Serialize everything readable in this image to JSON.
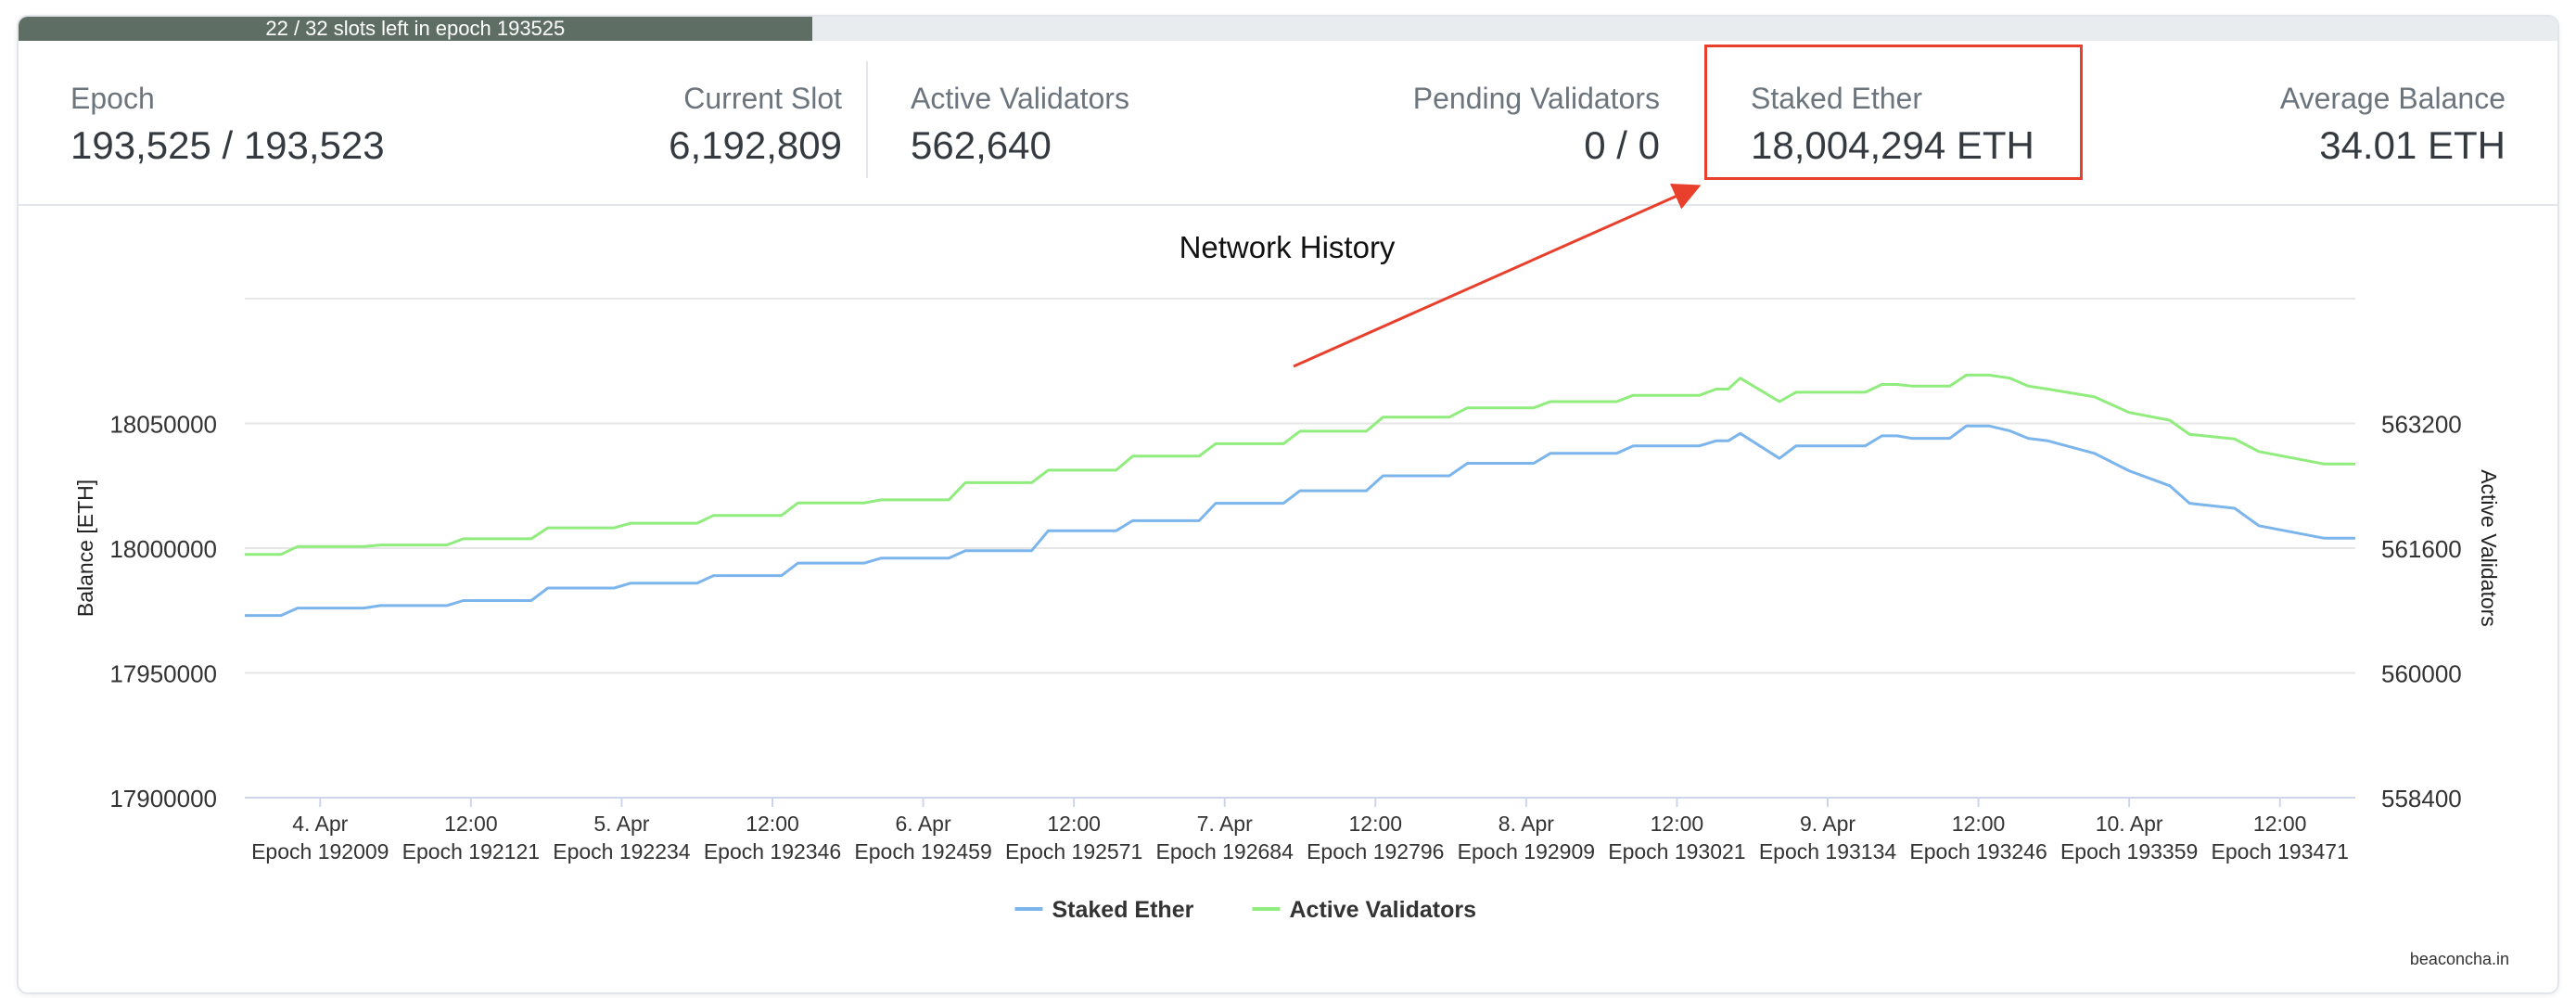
{
  "progress": {
    "text": "22 / 32 slots left in epoch 193525",
    "fraction": 0.3125
  },
  "stats": {
    "epoch": {
      "label": "Epoch",
      "value": "193,525 / 193,523"
    },
    "current_slot": {
      "label": "Current Slot",
      "value": "6,192,809"
    },
    "active_validators": {
      "label": "Active Validators",
      "value": "562,640"
    },
    "pending_validators": {
      "label": "Pending Validators",
      "value": "0 / 0"
    },
    "staked_ether": {
      "label": "Staked Ether",
      "value": "18,004,294 ETH"
    },
    "average_balance": {
      "label": "Average Balance",
      "value": "34.01 ETH"
    }
  },
  "colors": {
    "staked": "#7cb5ec",
    "validators": "#90ed7d",
    "highlight": "#e8402c"
  },
  "credit": "beaconcha.in",
  "chart_data": {
    "type": "line",
    "title": "Network History",
    "y_left_label": "Balance [ETH]",
    "y_right_label": "Active Validators",
    "y_left_range": [
      17900000,
      18100000
    ],
    "y_right_range": [
      558400,
      564800
    ],
    "y_left_ticks": [
      "17900000",
      "17950000",
      "18000000",
      "18050000"
    ],
    "y_right_ticks": [
      "558400",
      "560000",
      "561600",
      "563200"
    ],
    "x_range": [
      0,
      14
    ],
    "x_ticks": [
      {
        "x": 0.5,
        "date": "4. Apr",
        "epoch": "Epoch 192009"
      },
      {
        "x": 1.5,
        "date": "12:00",
        "epoch": "Epoch 192121"
      },
      {
        "x": 2.5,
        "date": "5. Apr",
        "epoch": "Epoch 192234"
      },
      {
        "x": 3.5,
        "date": "12:00",
        "epoch": "Epoch 192346"
      },
      {
        "x": 4.5,
        "date": "6. Apr",
        "epoch": "Epoch 192459"
      },
      {
        "x": 5.5,
        "date": "12:00",
        "epoch": "Epoch 192571"
      },
      {
        "x": 6.5,
        "date": "7. Apr",
        "epoch": "Epoch 192684"
      },
      {
        "x": 7.5,
        "date": "12:00",
        "epoch": "Epoch 192796"
      },
      {
        "x": 8.5,
        "date": "8. Apr",
        "epoch": "Epoch 192909"
      },
      {
        "x": 9.5,
        "date": "12:00",
        "epoch": "Epoch 193021"
      },
      {
        "x": 10.5,
        "date": "9. Apr",
        "epoch": "Epoch 193134"
      },
      {
        "x": 11.5,
        "date": "12:00",
        "epoch": "Epoch 193246"
      },
      {
        "x": 12.5,
        "date": "10. Apr",
        "epoch": "Epoch 193359"
      },
      {
        "x": 13.5,
        "date": "12:00",
        "epoch": "Epoch 193471"
      }
    ],
    "legend": {
      "position": "bottom-center"
    },
    "series": [
      {
        "name": "Staked Ether",
        "axis": "left",
        "color": "#7cb5ec",
        "x": [
          0,
          0.24,
          0.35,
          0.79,
          0.9,
          1.34,
          1.45,
          1.9,
          2.01,
          2.45,
          2.56,
          3.0,
          3.11,
          3.56,
          3.67,
          4.11,
          4.22,
          4.67,
          4.78,
          5.22,
          5.33,
          5.78,
          5.89,
          6.33,
          6.44,
          6.89,
          7.0,
          7.44,
          7.55,
          7.99,
          8.11,
          8.55,
          8.66,
          9.1,
          9.21,
          9.65,
          9.76,
          9.84,
          9.92,
          10.18,
          10.29,
          10.75,
          10.86,
          10.96,
          11.06,
          11.31,
          11.42,
          11.57,
          11.71,
          11.83,
          11.96,
          12.27,
          12.5,
          12.77,
          12.9,
          13.2,
          13.36,
          13.79,
          14.0
        ],
        "y": [
          17973000,
          17973000,
          17976000,
          17976000,
          17977000,
          17977000,
          17979000,
          17979000,
          17984000,
          17984000,
          17986000,
          17986000,
          17989000,
          17989000,
          17994000,
          17994000,
          17996000,
          17996000,
          17999000,
          17999000,
          18007000,
          18007000,
          18011000,
          18011000,
          18018000,
          18018000,
          18023000,
          18023000,
          18029000,
          18029000,
          18034000,
          18034000,
          18038000,
          18038000,
          18041000,
          18041000,
          18043000,
          18043000,
          18046000,
          18036000,
          18041000,
          18041000,
          18045000,
          18045000,
          18044000,
          18044000,
          18049000,
          18049000,
          18047000,
          18044000,
          18043000,
          18038000,
          18031000,
          18025000,
          18018000,
          18016000,
          18009000,
          18004000,
          18004000
        ]
      },
      {
        "name": "Active Validators",
        "axis": "right",
        "color": "#90ed7d",
        "x": [
          0,
          0.24,
          0.35,
          0.79,
          0.9,
          1.34,
          1.45,
          1.9,
          2.01,
          2.45,
          2.56,
          3.0,
          3.11,
          3.56,
          3.67,
          4.11,
          4.22,
          4.67,
          4.78,
          5.22,
          5.33,
          5.78,
          5.89,
          6.33,
          6.44,
          6.89,
          7.0,
          7.44,
          7.55,
          7.99,
          8.11,
          8.55,
          8.66,
          9.1,
          9.21,
          9.65,
          9.76,
          9.84,
          9.92,
          10.18,
          10.29,
          10.75,
          10.86,
          10.96,
          11.06,
          11.31,
          11.42,
          11.57,
          11.71,
          11.83,
          11.96,
          12.27,
          12.5,
          12.77,
          12.9,
          13.2,
          13.36,
          13.79,
          14.0
        ],
        "y": [
          561520,
          561520,
          561620,
          561620,
          561640,
          561640,
          561720,
          561720,
          561860,
          561860,
          561920,
          561920,
          562020,
          562020,
          562180,
          562180,
          562220,
          562220,
          562440,
          562440,
          562600,
          562600,
          562780,
          562780,
          562940,
          562940,
          563100,
          563100,
          563280,
          563280,
          563400,
          563400,
          563480,
          563480,
          563560,
          563560,
          563640,
          563640,
          563780,
          563480,
          563600,
          563600,
          563700,
          563700,
          563680,
          563680,
          563820,
          563820,
          563780,
          563680,
          563640,
          563540,
          563340,
          563240,
          563060,
          563000,
          562840,
          562680,
          562680
        ]
      }
    ]
  }
}
